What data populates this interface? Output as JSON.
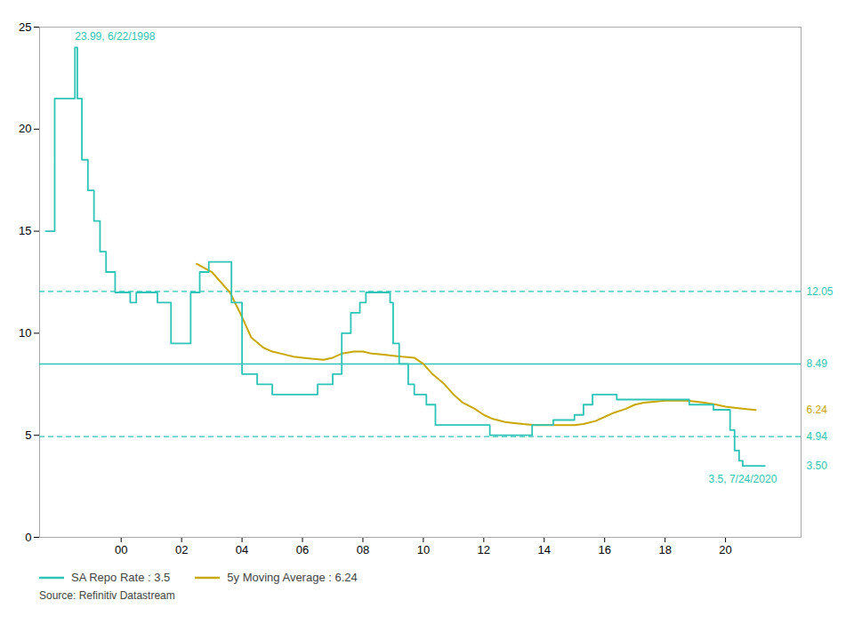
{
  "chart_data": {
    "type": "line",
    "xlim": [
      1997.3,
      2022.5
    ],
    "xticks": [
      {
        "value": 2000,
        "label": "00"
      },
      {
        "value": 2002,
        "label": "02"
      },
      {
        "value": 2004,
        "label": "04"
      },
      {
        "value": 2006,
        "label": "06"
      },
      {
        "value": 2008,
        "label": "08"
      },
      {
        "value": 2010,
        "label": "10"
      },
      {
        "value": 2012,
        "label": "12"
      },
      {
        "value": 2014,
        "label": "14"
      },
      {
        "value": 2016,
        "label": "16"
      },
      {
        "value": 2018,
        "label": "18"
      },
      {
        "value": 2020,
        "label": "20"
      }
    ],
    "ylim": [
      0,
      25
    ],
    "yticks": [
      0,
      5,
      10,
      15,
      20,
      25
    ],
    "grid": false,
    "legend": "bottom",
    "source": "Source: Refinitiv Datastream",
    "series": [
      {
        "name": "SA Repo Rate : 3.5",
        "color": "#2EC4B6",
        "type": "step",
        "x": [
          1997.5,
          1997.8,
          1998.0,
          1998.47,
          1998.55,
          1998.7,
          1998.9,
          1999.1,
          1999.3,
          1999.5,
          1999.8,
          2000.0,
          2000.3,
          2000.5,
          2000.8,
          2001.0,
          2001.2,
          2001.5,
          2001.65,
          2001.8,
          2002.0,
          2002.3,
          2002.6,
          2002.9,
          2003.2,
          2003.5,
          2003.65,
          2003.9,
          2004.0,
          2004.2,
          2004.5,
          2004.8,
          2005.0,
          2005.3,
          2005.6,
          2005.9,
          2006.2,
          2006.5,
          2006.8,
          2007.0,
          2007.3,
          2007.6,
          2007.9,
          2008.1,
          2008.4,
          2008.65,
          2008.9,
          2009.0,
          2009.2,
          2009.5,
          2009.7,
          2009.9,
          2010.1,
          2010.4,
          2010.7,
          2011.0,
          2011.3,
          2011.6,
          2011.9,
          2012.2,
          2012.5,
          2012.8,
          2013.0,
          2013.3,
          2013.6,
          2013.9,
          2014.1,
          2014.3,
          2014.5,
          2014.7,
          2015.0,
          2015.3,
          2015.6,
          2015.9,
          2016.1,
          2016.4,
          2016.7,
          2017.0,
          2017.3,
          2017.6,
          2017.9,
          2018.2,
          2018.5,
          2018.8,
          2019.0,
          2019.3,
          2019.6,
          2019.8,
          2020.0,
          2020.15,
          2020.3,
          2020.45,
          2020.57,
          2020.7,
          2020.9,
          2021.1,
          2021.3
        ],
        "values": [
          15.0,
          21.5,
          21.5,
          24.0,
          21.5,
          18.5,
          17.0,
          15.5,
          14.0,
          13.0,
          12.0,
          12.0,
          11.5,
          12.0,
          12.0,
          12.0,
          11.5,
          11.5,
          9.5,
          9.5,
          9.5,
          12.0,
          13.0,
          13.5,
          13.5,
          13.5,
          11.5,
          11.5,
          8.0,
          8.0,
          7.5,
          7.5,
          7.0,
          7.0,
          7.0,
          7.0,
          7.0,
          7.5,
          7.5,
          8.0,
          10.0,
          11.0,
          11.5,
          12.0,
          12.0,
          12.0,
          11.5,
          9.5,
          8.5,
          7.5,
          7.0,
          7.0,
          6.5,
          5.5,
          5.5,
          5.5,
          5.5,
          5.5,
          5.5,
          5.0,
          5.0,
          5.0,
          5.0,
          5.0,
          5.5,
          5.5,
          5.5,
          5.75,
          5.75,
          5.75,
          6.0,
          6.5,
          7.0,
          7.0,
          7.0,
          6.75,
          6.75,
          6.75,
          6.75,
          6.75,
          6.75,
          6.75,
          6.75,
          6.5,
          6.5,
          6.5,
          6.25,
          6.25,
          6.25,
          5.25,
          4.25,
          3.75,
          3.5,
          3.5,
          3.5,
          3.5,
          3.5
        ]
      },
      {
        "name": "5y Moving Average : 6.24",
        "color": "#C8A800",
        "type": "line",
        "x": [
          2002.5,
          2003.0,
          2003.3,
          2003.6,
          2004.0,
          2004.3,
          2004.7,
          2005.0,
          2005.3,
          2005.7,
          2006.0,
          2006.3,
          2006.7,
          2007.0,
          2007.3,
          2007.7,
          2008.0,
          2008.3,
          2008.7,
          2009.0,
          2009.3,
          2009.7,
          2010.0,
          2010.3,
          2010.7,
          2011.0,
          2011.3,
          2011.7,
          2012.0,
          2012.3,
          2012.7,
          2013.0,
          2013.3,
          2013.7,
          2014.0,
          2014.3,
          2014.7,
          2015.0,
          2015.3,
          2015.7,
          2016.0,
          2016.3,
          2016.7,
          2017.0,
          2017.3,
          2017.7,
          2018.0,
          2018.3,
          2018.7,
          2019.0,
          2019.3,
          2019.7,
          2020.0,
          2020.3,
          2020.7,
          2021.0
        ],
        "values": [
          13.4,
          13.0,
          12.5,
          12.0,
          10.8,
          9.8,
          9.3,
          9.1,
          9.0,
          8.85,
          8.8,
          8.75,
          8.7,
          8.8,
          9.0,
          9.1,
          9.1,
          9.0,
          8.95,
          8.9,
          8.85,
          8.8,
          8.5,
          8.0,
          7.5,
          7.0,
          6.6,
          6.3,
          6.0,
          5.8,
          5.65,
          5.6,
          5.55,
          5.5,
          5.5,
          5.5,
          5.5,
          5.5,
          5.55,
          5.7,
          5.9,
          6.1,
          6.3,
          6.5,
          6.6,
          6.65,
          6.7,
          6.7,
          6.7,
          6.65,
          6.6,
          6.5,
          6.4,
          6.35,
          6.28,
          6.24
        ]
      }
    ],
    "hlines": [
      {
        "value": 8.49,
        "color": "#2EC4B6",
        "line_style": "solid"
      },
      {
        "value": 12.05,
        "color": "#2EC4B6",
        "line_style": "dashed"
      },
      {
        "value": 4.94,
        "color": "#2EC4B6",
        "line_style": "dashed"
      }
    ],
    "right_labels": [
      {
        "value": 12.05,
        "label": "12.05",
        "color": "#2EC4B6"
      },
      {
        "value": 8.49,
        "label": "8.49",
        "color": "#2EC4B6"
      },
      {
        "value": 6.24,
        "label": "6.24",
        "color": "#C8A800"
      },
      {
        "value": 4.94,
        "label": "4.94",
        "color": "#2EC4B6"
      },
      {
        "value": 3.5,
        "label": "3.50",
        "color": "#2EC4B6"
      }
    ],
    "annotations": [
      "23.99, 6/22/1998",
      "3.5, 7/24/2020"
    ]
  }
}
